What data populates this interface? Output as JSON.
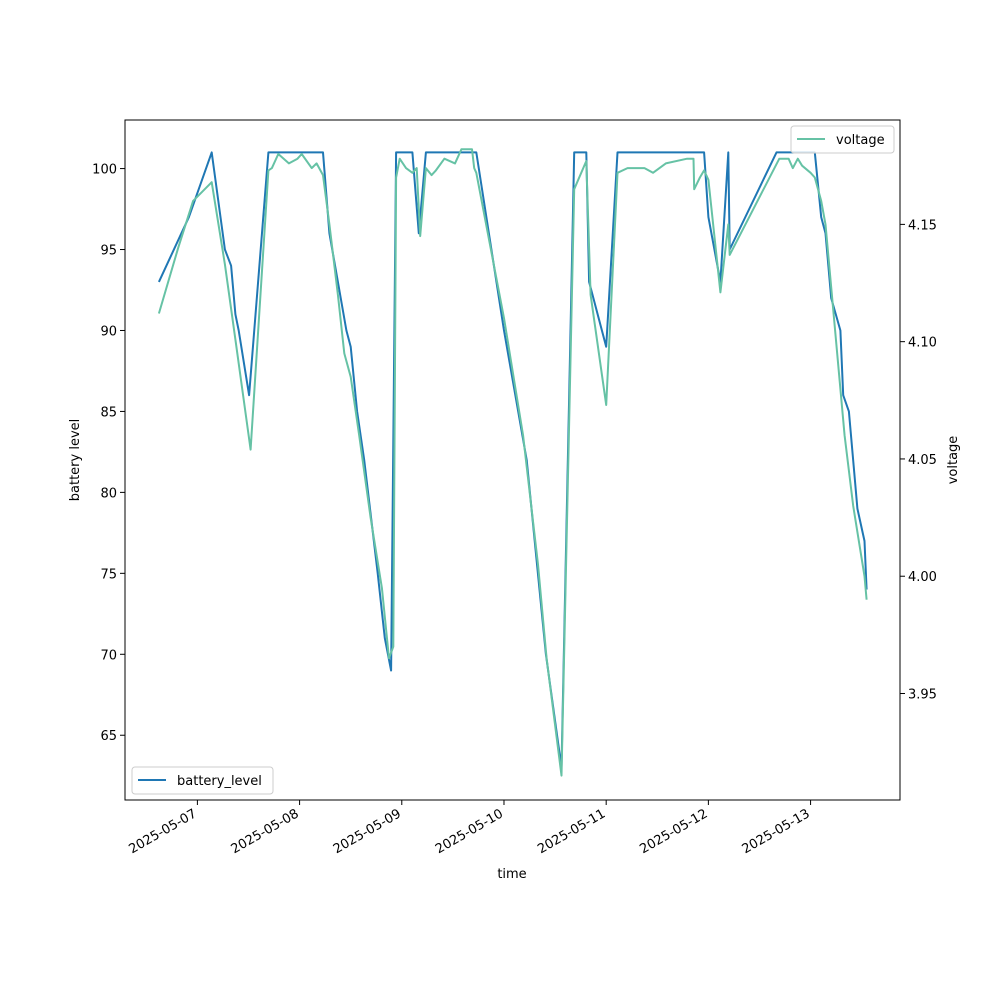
{
  "chart_data": {
    "type": "line",
    "title": "",
    "xlabel": "time",
    "ylabel_left": "battery level",
    "ylabel_right": "voltage",
    "x_tick_labels": [
      "2025-05-07",
      "2025-05-08",
      "2025-05-09",
      "2025-05-10",
      "2025-05-11",
      "2025-05-12",
      "2025-05-13"
    ],
    "xlim": [
      "2025-05-06T07:00:00",
      "2025-05-13T21:00:00"
    ],
    "ylim_left": [
      61,
      103
    ],
    "y_ticks_left": [
      65,
      70,
      75,
      80,
      85,
      90,
      95,
      100
    ],
    "ylim_right": [
      3.9046,
      4.1945
    ],
    "y_ticks_right": [
      3.95,
      4.0,
      4.05,
      4.1,
      4.15
    ],
    "grid": false,
    "series": [
      {
        "name": "battery_level",
        "axis": "left",
        "color": "#1f77b4",
        "legend_position": "lower-left",
        "points": [
          [
            "2025-05-06T14:58:00",
            93
          ],
          [
            "2025-05-06T22:00:00",
            97
          ],
          [
            "2025-05-07T03:21:00",
            101
          ],
          [
            "2025-05-07T06:28:00",
            95
          ],
          [
            "2025-05-07T07:55:00",
            94
          ],
          [
            "2025-05-07T08:55:00",
            91
          ],
          [
            "2025-05-07T09:42:00",
            90
          ],
          [
            "2025-05-07T12:09:00",
            86
          ],
          [
            "2025-05-07T16:41:00",
            101
          ],
          [
            "2025-05-08T05:30:00",
            101
          ],
          [
            "2025-05-08T07:00:00",
            96
          ],
          [
            "2025-05-08T11:00:00",
            90
          ],
          [
            "2025-05-08T12:00:00",
            89
          ],
          [
            "2025-05-08T13:30:00",
            85
          ],
          [
            "2025-05-08T15:10:00",
            82
          ],
          [
            "2025-05-08T18:20:00",
            75
          ],
          [
            "2025-05-08T20:00:00",
            71
          ],
          [
            "2025-05-08T21:30:00",
            69
          ],
          [
            "2025-05-08T22:40:00",
            101
          ],
          [
            "2025-05-09T02:30:00",
            101
          ],
          [
            "2025-05-09T04:00:00",
            96
          ],
          [
            "2025-05-09T05:40:00",
            101
          ],
          [
            "2025-05-09T17:30:00",
            101
          ],
          [
            "2025-05-10T00:00:00",
            90
          ],
          [
            "2025-05-10T05:20:00",
            82
          ],
          [
            "2025-05-10T09:50:00",
            70
          ],
          [
            "2025-05-10T13:30:00",
            63
          ],
          [
            "2025-05-10T16:30:00",
            101
          ],
          [
            "2025-05-10T19:20:00",
            101
          ],
          [
            "2025-05-10T20:00:00",
            93
          ],
          [
            "2025-05-11T00:00:00",
            89
          ],
          [
            "2025-05-11T02:40:00",
            101
          ],
          [
            "2025-05-11T23:00:00",
            101
          ],
          [
            "2025-05-12T00:00:00",
            97
          ],
          [
            "2025-05-12T02:50:00",
            93
          ],
          [
            "2025-05-12T04:40:00",
            101
          ],
          [
            "2025-05-12T05:00:00",
            95
          ],
          [
            "2025-05-12T16:00:00",
            101
          ],
          [
            "2025-05-13T01:00:00",
            101
          ],
          [
            "2025-05-13T02:30:00",
            97
          ],
          [
            "2025-05-13T03:30:00",
            96
          ],
          [
            "2025-05-13T04:50:00",
            92
          ],
          [
            "2025-05-13T07:00:00",
            90
          ],
          [
            "2025-05-13T07:40:00",
            86
          ],
          [
            "2025-05-13T09:00:00",
            85
          ],
          [
            "2025-05-13T11:00:00",
            79
          ],
          [
            "2025-05-13T12:40:00",
            77
          ],
          [
            "2025-05-13T13:10:00",
            74
          ]
        ]
      },
      {
        "name": "voltage",
        "axis": "right",
        "color": "#66c2a5",
        "legend_position": "upper-right",
        "points": [
          [
            "2025-05-06T14:58:00",
            4.112
          ],
          [
            "2025-05-06T19:30:00",
            4.14
          ],
          [
            "2025-05-06T23:00:00",
            4.16
          ],
          [
            "2025-05-07T03:21:00",
            4.168
          ],
          [
            "2025-05-07T06:28:00",
            4.133
          ],
          [
            "2025-05-07T09:00:00",
            4.1
          ],
          [
            "2025-05-07T12:30:00",
            4.054
          ],
          [
            "2025-05-07T16:41:00",
            4.173
          ],
          [
            "2025-05-07T17:30:00",
            4.174
          ],
          [
            "2025-05-07T19:00:00",
            4.18
          ],
          [
            "2025-05-07T21:30:00",
            4.176
          ],
          [
            "2025-05-07T23:30:00",
            4.178
          ],
          [
            "2025-05-08T00:30:00",
            4.18
          ],
          [
            "2025-05-08T02:50:00",
            4.174
          ],
          [
            "2025-05-08T04:00:00",
            4.176
          ],
          [
            "2025-05-08T05:30:00",
            4.171
          ],
          [
            "2025-05-08T07:00:00",
            4.15
          ],
          [
            "2025-05-08T09:00:00",
            4.12
          ],
          [
            "2025-05-08T10:30:00",
            4.095
          ],
          [
            "2025-05-08T12:00:00",
            4.085
          ],
          [
            "2025-05-08T14:00:00",
            4.06
          ],
          [
            "2025-05-08T16:40:00",
            4.025
          ],
          [
            "2025-05-08T19:20:00",
            3.995
          ],
          [
            "2025-05-08T21:00:00",
            3.965
          ],
          [
            "2025-05-08T22:00:00",
            3.97
          ],
          [
            "2025-05-08T22:40:00",
            4.17
          ],
          [
            "2025-05-08T23:30:00",
            4.178
          ],
          [
            "2025-05-09T01:00:00",
            4.174
          ],
          [
            "2025-05-09T02:30:00",
            4.172
          ],
          [
            "2025-05-09T03:30:00",
            4.174
          ],
          [
            "2025-05-09T04:20:00",
            4.145
          ],
          [
            "2025-05-09T05:40:00",
            4.174
          ],
          [
            "2025-05-09T07:00:00",
            4.171
          ],
          [
            "2025-05-09T08:00:00",
            4.173
          ],
          [
            "2025-05-09T10:00:00",
            4.178
          ],
          [
            "2025-05-09T12:30:00",
            4.176
          ],
          [
            "2025-05-09T14:00:00",
            4.182
          ],
          [
            "2025-05-09T15:00:00",
            4.182
          ],
          [
            "2025-05-09T16:30:00",
            4.182
          ],
          [
            "2025-05-09T17:00:00",
            4.174
          ],
          [
            "2025-05-09T17:30:00",
            4.172
          ],
          [
            "2025-05-10T00:00:00",
            4.11
          ],
          [
            "2025-05-10T04:30:00",
            4.06
          ],
          [
            "2025-05-10T08:00:00",
            4.005
          ],
          [
            "2025-05-10T10:00:00",
            3.965
          ],
          [
            "2025-05-10T13:30:00",
            3.915
          ],
          [
            "2025-05-10T16:30:00",
            4.165
          ],
          [
            "2025-05-10T19:20:00",
            4.177
          ],
          [
            "2025-05-10T20:20:00",
            4.12
          ],
          [
            "2025-05-11T00:00:00",
            4.073
          ],
          [
            "2025-05-11T02:40:00",
            4.172
          ],
          [
            "2025-05-11T05:00:00",
            4.174
          ],
          [
            "2025-05-11T09:00:00",
            4.174
          ],
          [
            "2025-05-11T11:00:00",
            4.172
          ],
          [
            "2025-05-11T14:00:00",
            4.176
          ],
          [
            "2025-05-11T19:00:00",
            4.178
          ],
          [
            "2025-05-11T20:30:00",
            4.178
          ],
          [
            "2025-05-11T20:40:00",
            4.165
          ],
          [
            "2025-05-11T22:00:00",
            4.17
          ],
          [
            "2025-05-11T23:00:00",
            4.173
          ],
          [
            "2025-05-12T00:00:00",
            4.169
          ],
          [
            "2025-05-12T02:50:00",
            4.121
          ],
          [
            "2025-05-12T04:40:00",
            4.15
          ],
          [
            "2025-05-12T05:00:00",
            4.137
          ],
          [
            "2025-05-12T16:40:00",
            4.178
          ],
          [
            "2025-05-12T18:50:00",
            4.178
          ],
          [
            "2025-05-12T19:50:00",
            4.174
          ],
          [
            "2025-05-12T21:00:00",
            4.178
          ],
          [
            "2025-05-12T22:00:00",
            4.175
          ],
          [
            "2025-05-13T00:00:00",
            4.172
          ],
          [
            "2025-05-13T01:00:00",
            4.17
          ],
          [
            "2025-05-13T02:30:00",
            4.16
          ],
          [
            "2025-05-13T03:30:00",
            4.15
          ],
          [
            "2025-05-13T05:30:00",
            4.11
          ],
          [
            "2025-05-13T08:00:00",
            4.06
          ],
          [
            "2025-05-13T10:00:00",
            4.03
          ],
          [
            "2025-05-13T12:40:00",
            4.0
          ],
          [
            "2025-05-13T13:10:00",
            3.99
          ]
        ]
      }
    ]
  }
}
